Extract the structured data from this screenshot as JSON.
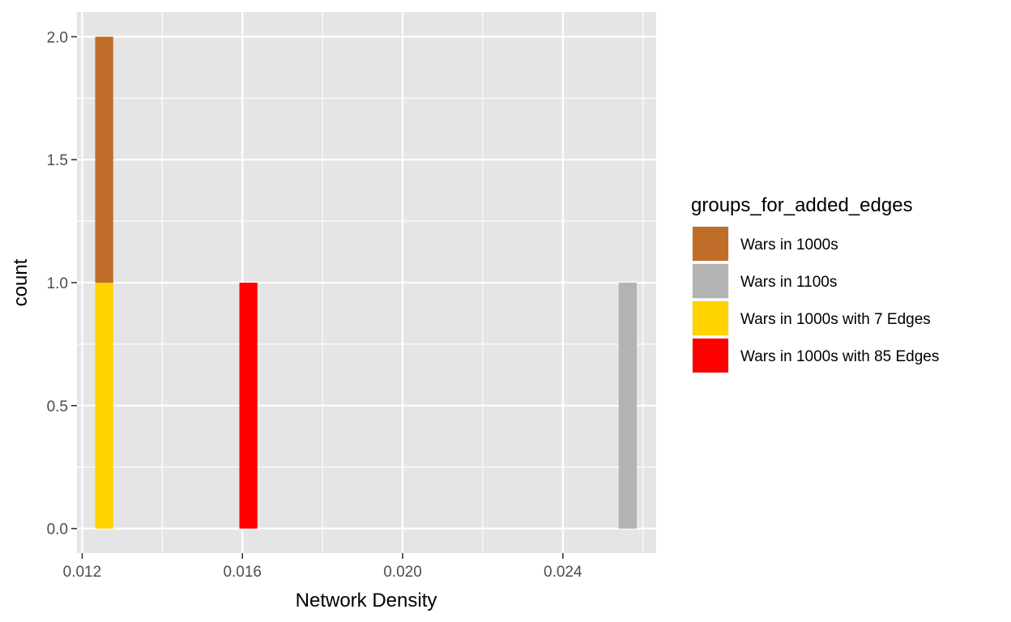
{
  "chart_data": {
    "type": "bar",
    "xlabel": "Network Density",
    "ylabel": "count",
    "xlim": [
      0.01187,
      0.02633
    ],
    "ylim": [
      -0.1,
      2.1
    ],
    "x_ticks": [
      0.012,
      0.016,
      0.02,
      0.024
    ],
    "x_tick_labels": [
      "0.012",
      "0.016",
      "0.020",
      "0.024"
    ],
    "x_minor_ticks": [
      0.014,
      0.018,
      0.022,
      0.026
    ],
    "y_ticks": [
      0.0,
      0.5,
      1.0,
      1.5,
      2.0
    ],
    "y_tick_labels": [
      "0.0",
      "0.5",
      "1.0",
      "1.5",
      "2.0"
    ],
    "y_minor_ticks": [
      0.25,
      0.75,
      1.25,
      1.75
    ],
    "bin_width": 0.00045,
    "grid": true,
    "legend": {
      "title": "groups_for_added_edges",
      "position": "right",
      "entries": [
        {
          "label": "Wars in 1000s",
          "color": "#C06D2A"
        },
        {
          "label": "Wars in 1100s",
          "color": "#B3B3B3"
        },
        {
          "label": "Wars in 1000s with 7 Edges",
          "color": "#FFD300"
        },
        {
          "label": "Wars in 1000s with 85 Edges",
          "color": "#FF0000"
        }
      ]
    },
    "bars": [
      {
        "series": "Wars in 1000s with 7 Edges",
        "x": 0.01255,
        "y0": 0,
        "y1": 1
      },
      {
        "series": "Wars in 1000s",
        "x": 0.01255,
        "y0": 1,
        "y1": 2
      },
      {
        "series": "Wars in 1000s with 85 Edges",
        "x": 0.01615,
        "y0": 0,
        "y1": 1
      },
      {
        "series": "Wars in 1100s",
        "x": 0.02562,
        "y0": 0,
        "y1": 1
      }
    ],
    "colors": {
      "panel_background": "#E5E5E5",
      "grid_line": "#FFFFFF",
      "tick_mark": "#333333"
    }
  }
}
